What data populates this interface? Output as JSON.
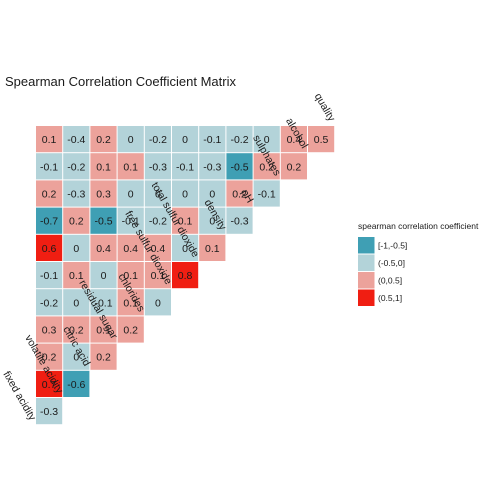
{
  "chart_data": {
    "type": "heatmap",
    "title": "Spearman Correlation Coefficient Matrix",
    "variables": [
      "fixed acidity",
      "volatile acidity",
      "citric acid",
      "residual sugar",
      "chlorides",
      "free sulfur dioxide",
      "total sulfur dioxide",
      "density",
      "pH",
      "sulphates",
      "alcohol",
      "quality"
    ],
    "cells": [
      {
        "row": "volatile acidity",
        "col": "fixed acidity",
        "value": -0.3,
        "bin": 1
      },
      {
        "row": "citric acid",
        "col": "fixed acidity",
        "value": 0.7,
        "bin": 3
      },
      {
        "row": "citric acid",
        "col": "volatile acidity",
        "value": -0.6,
        "bin": 0
      },
      {
        "row": "residual sugar",
        "col": "fixed acidity",
        "value": 0.2,
        "bin": 2
      },
      {
        "row": "residual sugar",
        "col": "volatile acidity",
        "value": 0,
        "bin": 1
      },
      {
        "row": "residual sugar",
        "col": "citric acid",
        "value": 0.2,
        "bin": 2
      },
      {
        "row": "chlorides",
        "col": "fixed acidity",
        "value": 0.3,
        "bin": 2
      },
      {
        "row": "chlorides",
        "col": "volatile acidity",
        "value": 0.2,
        "bin": 2
      },
      {
        "row": "chlorides",
        "col": "citric acid",
        "value": 0.1,
        "bin": 2
      },
      {
        "row": "chlorides",
        "col": "residual sugar",
        "value": 0.2,
        "bin": 2
      },
      {
        "row": "free sulfur dioxide",
        "col": "fixed acidity",
        "value": -0.2,
        "bin": 1
      },
      {
        "row": "free sulfur dioxide",
        "col": "volatile acidity",
        "value": 0,
        "bin": 1
      },
      {
        "row": "free sulfur dioxide",
        "col": "citric acid",
        "value": -0.1,
        "bin": 1
      },
      {
        "row": "free sulfur dioxide",
        "col": "residual sugar",
        "value": 0.1,
        "bin": 2
      },
      {
        "row": "free sulfur dioxide",
        "col": "chlorides",
        "value": 0,
        "bin": 1
      },
      {
        "row": "total sulfur dioxide",
        "col": "fixed acidity",
        "value": -0.1,
        "bin": 1
      },
      {
        "row": "total sulfur dioxide",
        "col": "volatile acidity",
        "value": 0.1,
        "bin": 2
      },
      {
        "row": "total sulfur dioxide",
        "col": "citric acid",
        "value": 0,
        "bin": 1
      },
      {
        "row": "total sulfur dioxide",
        "col": "residual sugar",
        "value": 0.1,
        "bin": 2
      },
      {
        "row": "total sulfur dioxide",
        "col": "chlorides",
        "value": 0.1,
        "bin": 2
      },
      {
        "row": "total sulfur dioxide",
        "col": "free sulfur dioxide",
        "value": 0.8,
        "bin": 3
      },
      {
        "row": "density",
        "col": "fixed acidity",
        "value": 0.6,
        "bin": 3
      },
      {
        "row": "density",
        "col": "volatile acidity",
        "value": 0,
        "bin": 1
      },
      {
        "row": "density",
        "col": "citric acid",
        "value": 0.4,
        "bin": 2
      },
      {
        "row": "density",
        "col": "residual sugar",
        "value": 0.4,
        "bin": 2
      },
      {
        "row": "density",
        "col": "chlorides",
        "value": 0.4,
        "bin": 2
      },
      {
        "row": "density",
        "col": "free sulfur dioxide",
        "value": 0,
        "bin": 1
      },
      {
        "row": "density",
        "col": "total sulfur dioxide",
        "value": 0.1,
        "bin": 2
      },
      {
        "row": "pH",
        "col": "fixed acidity",
        "value": -0.7,
        "bin": 0
      },
      {
        "row": "pH",
        "col": "volatile acidity",
        "value": 0.2,
        "bin": 2
      },
      {
        "row": "pH",
        "col": "citric acid",
        "value": -0.5,
        "bin": 0
      },
      {
        "row": "pH",
        "col": "residual sugar",
        "value": -0.1,
        "bin": 1
      },
      {
        "row": "pH",
        "col": "chlorides",
        "value": -0.2,
        "bin": 1
      },
      {
        "row": "pH",
        "col": "free sulfur dioxide",
        "value": 0.1,
        "bin": 2
      },
      {
        "row": "pH",
        "col": "total sulfur dioxide",
        "value": 0,
        "bin": 1
      },
      {
        "row": "pH",
        "col": "density",
        "value": -0.3,
        "bin": 1
      },
      {
        "row": "sulphates",
        "col": "fixed acidity",
        "value": 0.2,
        "bin": 2
      },
      {
        "row": "sulphates",
        "col": "volatile acidity",
        "value": -0.3,
        "bin": 1
      },
      {
        "row": "sulphates",
        "col": "citric acid",
        "value": 0.3,
        "bin": 2
      },
      {
        "row": "sulphates",
        "col": "residual sugar",
        "value": 0,
        "bin": 1
      },
      {
        "row": "sulphates",
        "col": "chlorides",
        "value": 0,
        "bin": 1
      },
      {
        "row": "sulphates",
        "col": "free sulfur dioxide",
        "value": 0,
        "bin": 1
      },
      {
        "row": "sulphates",
        "col": "total sulfur dioxide",
        "value": 0,
        "bin": 1
      },
      {
        "row": "sulphates",
        "col": "density",
        "value": 0.2,
        "bin": 2
      },
      {
        "row": "sulphates",
        "col": "pH",
        "value": -0.1,
        "bin": 1
      },
      {
        "row": "alcohol",
        "col": "fixed acidity",
        "value": -0.1,
        "bin": 1
      },
      {
        "row": "alcohol",
        "col": "volatile acidity",
        "value": -0.2,
        "bin": 1
      },
      {
        "row": "alcohol",
        "col": "citric acid",
        "value": 0.1,
        "bin": 2
      },
      {
        "row": "alcohol",
        "col": "residual sugar",
        "value": 0.1,
        "bin": 2
      },
      {
        "row": "alcohol",
        "col": "chlorides",
        "value": -0.3,
        "bin": 1
      },
      {
        "row": "alcohol",
        "col": "free sulfur dioxide",
        "value": -0.1,
        "bin": 1
      },
      {
        "row": "alcohol",
        "col": "total sulfur dioxide",
        "value": -0.3,
        "bin": 1
      },
      {
        "row": "alcohol",
        "col": "density",
        "value": -0.5,
        "bin": 0
      },
      {
        "row": "alcohol",
        "col": "pH",
        "value": 0.2,
        "bin": 2
      },
      {
        "row": "alcohol",
        "col": "sulphates",
        "value": 0.2,
        "bin": 2
      },
      {
        "row": "quality",
        "col": "fixed acidity",
        "value": 0.1,
        "bin": 2
      },
      {
        "row": "quality",
        "col": "volatile acidity",
        "value": -0.4,
        "bin": 1
      },
      {
        "row": "quality",
        "col": "citric acid",
        "value": 0.2,
        "bin": 2
      },
      {
        "row": "quality",
        "col": "residual sugar",
        "value": 0,
        "bin": 1
      },
      {
        "row": "quality",
        "col": "chlorides",
        "value": -0.2,
        "bin": 1
      },
      {
        "row": "quality",
        "col": "free sulfur dioxide",
        "value": 0,
        "bin": 1
      },
      {
        "row": "quality",
        "col": "total sulfur dioxide",
        "value": -0.1,
        "bin": 1
      },
      {
        "row": "quality",
        "col": "density",
        "value": -0.2,
        "bin": 1
      },
      {
        "row": "quality",
        "col": "pH",
        "value": 0,
        "bin": 1
      },
      {
        "row": "quality",
        "col": "sulphates",
        "value": 0.4,
        "bin": 2
      },
      {
        "row": "quality",
        "col": "alcohol",
        "value": 0.5,
        "bin": 2
      }
    ],
    "legend": {
      "title": "spearman correlation coefficient",
      "placement": "right",
      "entries": [
        {
          "label": "[-1,-0.5]",
          "color": "#3f9fb4"
        },
        {
          "label": "(-0.5,0]",
          "color": "#b3d3d9"
        },
        {
          "label": "(0,0.5]",
          "color": "#eca29b"
        },
        {
          "label": "(0.5,1]",
          "color": "#f01e12"
        }
      ]
    }
  }
}
